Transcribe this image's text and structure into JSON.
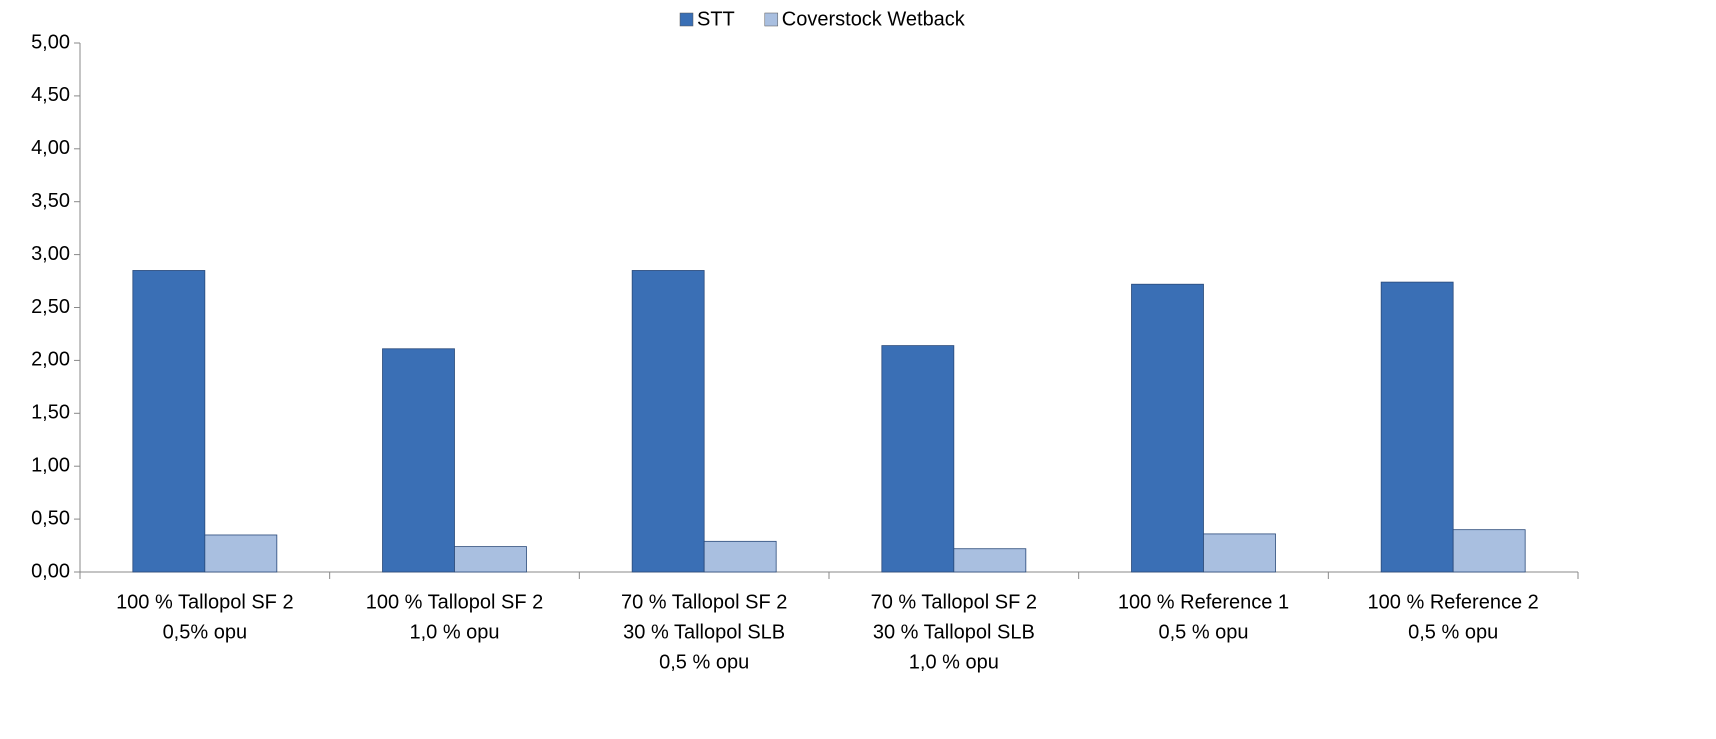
{
  "chart_data": {
    "type": "bar",
    "categories": [
      [
        "100 % Tallopol SF 2",
        "0,5% opu"
      ],
      [
        "100 % Tallopol SF 2",
        "1,0 % opu"
      ],
      [
        "70 % Tallopol SF 2",
        "30 % Tallopol SLB",
        "0,5 % opu"
      ],
      [
        "70 % Tallopol SF 2",
        "30 % Tallopol SLB",
        "1,0 % opu"
      ],
      [
        "100 % Reference 1",
        "0,5 % opu"
      ],
      [
        "100 % Reference 2",
        "0,5 % opu"
      ]
    ],
    "series": [
      {
        "name": "STT",
        "color": "#3a6fb5",
        "values": [
          2.85,
          2.11,
          2.85,
          2.14,
          2.72,
          2.74
        ]
      },
      {
        "name": "Coverstock Wetback",
        "color": "#a9bfe0",
        "values": [
          0.35,
          0.24,
          0.29,
          0.22,
          0.36,
          0.4
        ]
      }
    ],
    "ylim": [
      0,
      5
    ],
    "yticks": [
      {
        "value": 0,
        "label": "0,00"
      },
      {
        "value": 0.5,
        "label": "0,50"
      },
      {
        "value": 1,
        "label": "1,00"
      },
      {
        "value": 1.5,
        "label": "1,50"
      },
      {
        "value": 2,
        "label": "2,00"
      },
      {
        "value": 2.5,
        "label": "2,50"
      },
      {
        "value": 3,
        "label": "3,00"
      },
      {
        "value": 3.5,
        "label": "3,50"
      },
      {
        "value": 4,
        "label": "4,00"
      },
      {
        "value": 4.5,
        "label": "4,50"
      },
      {
        "value": 5,
        "label": "5,00"
      }
    ],
    "legend": "top"
  }
}
